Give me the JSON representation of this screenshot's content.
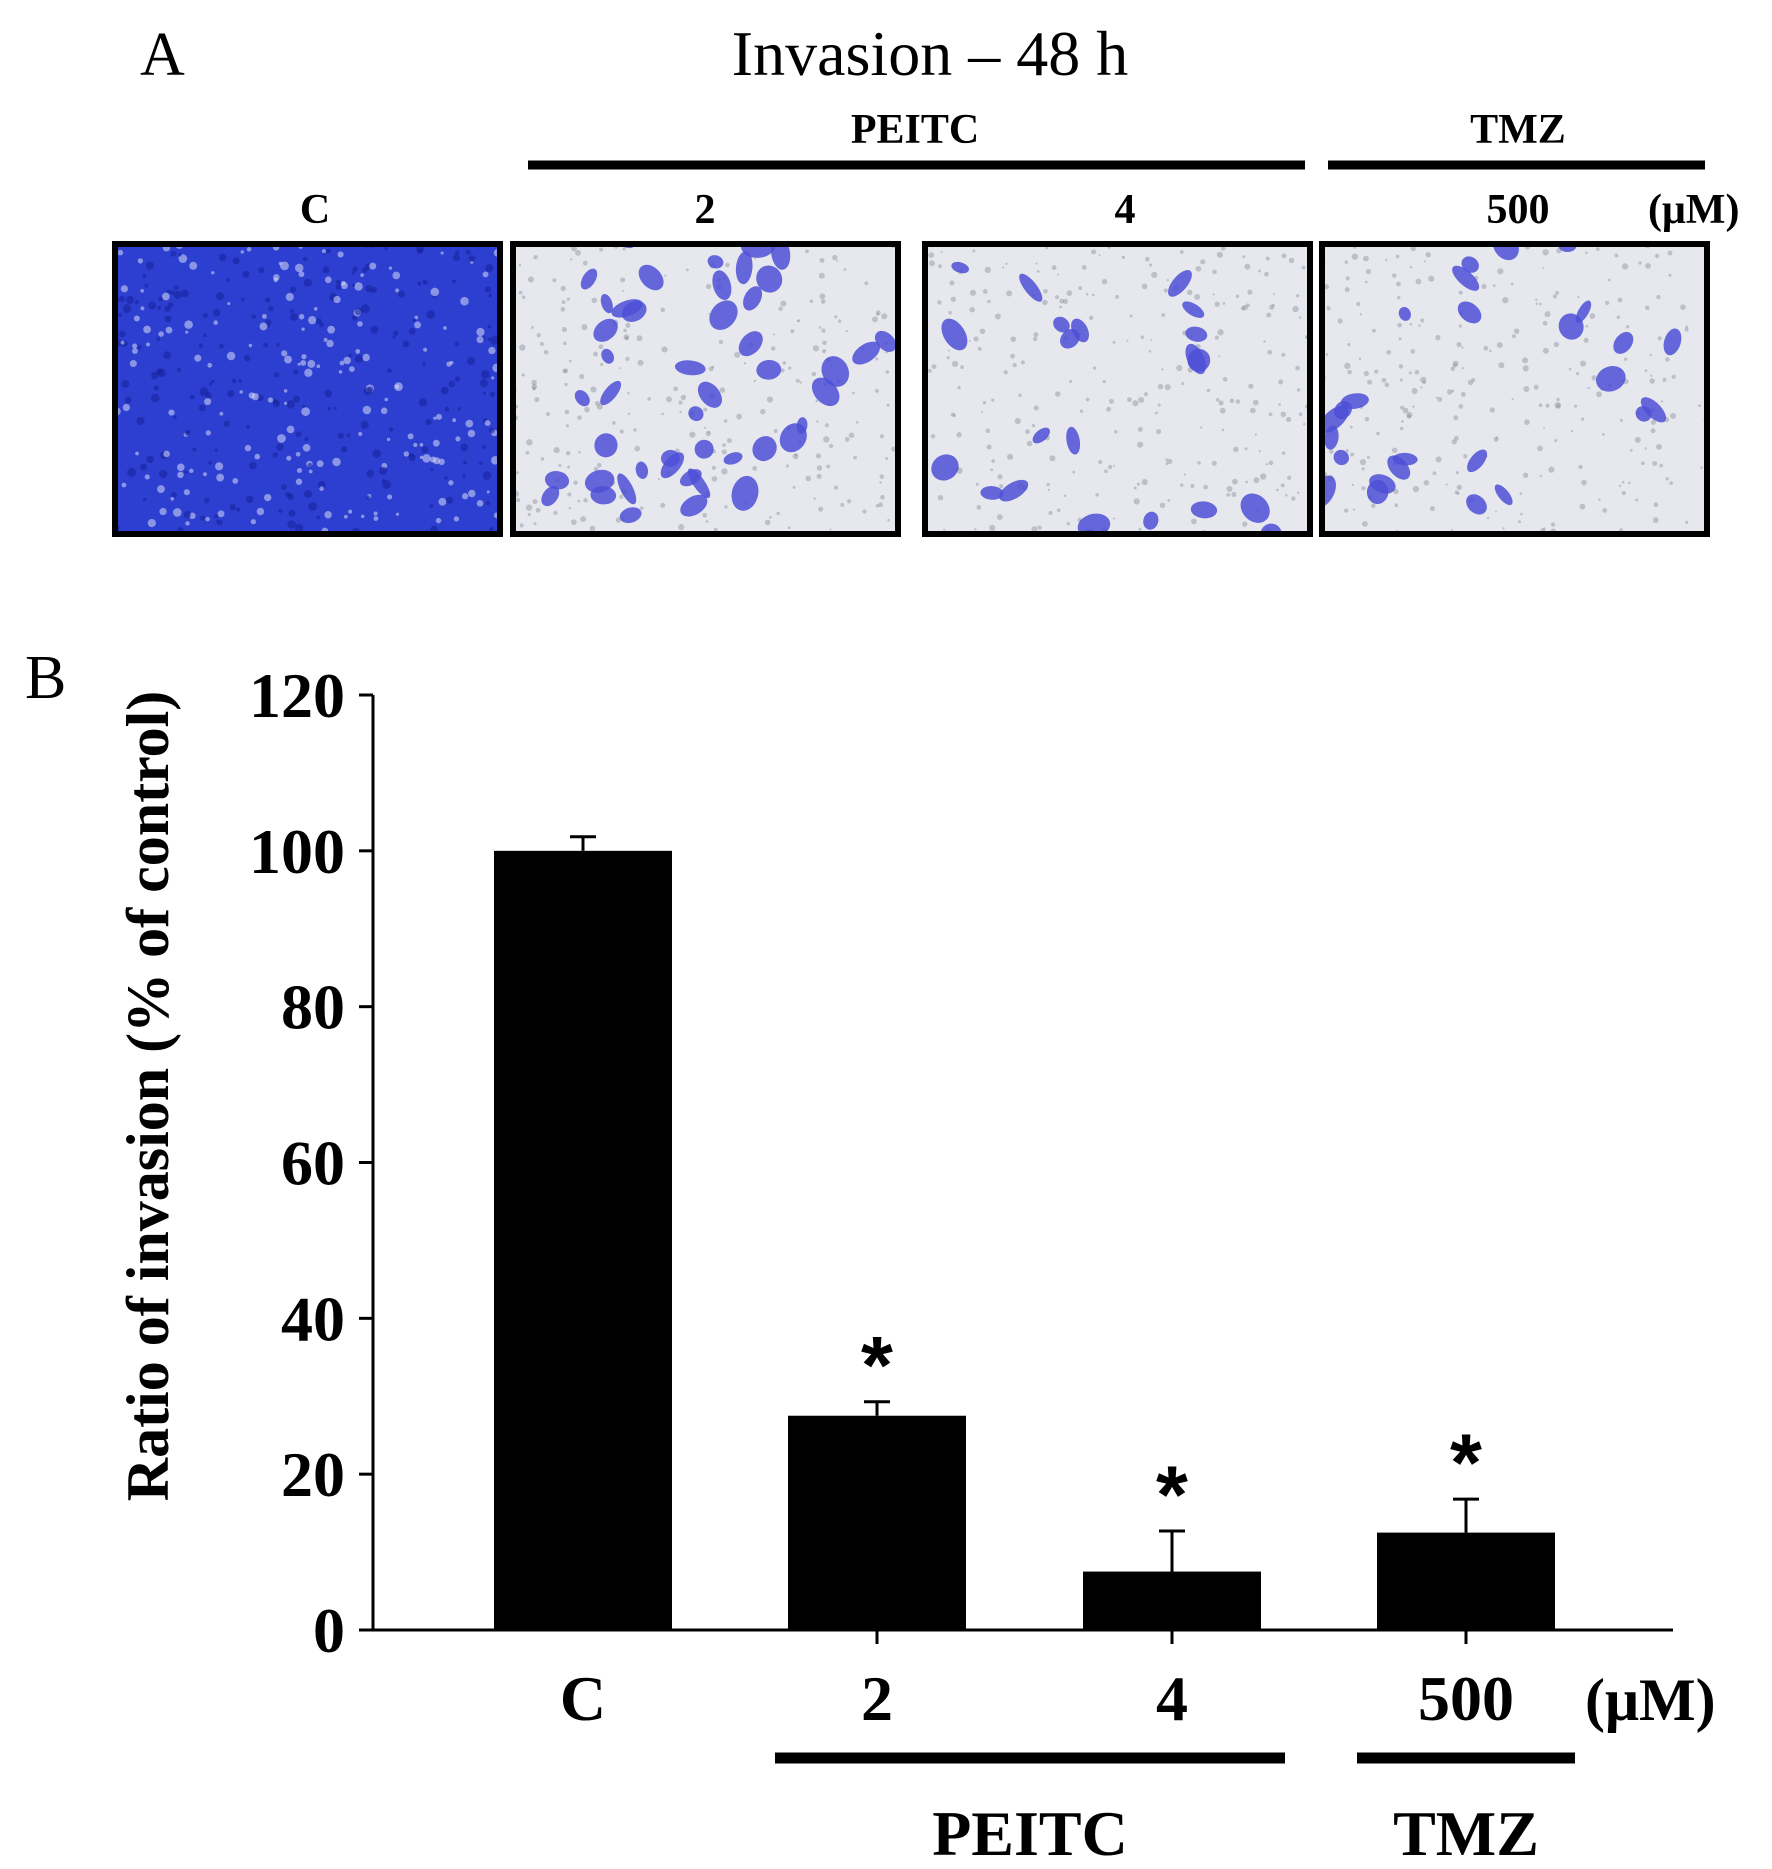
{
  "panel_a": {
    "letter": "A",
    "title": "Invasion – 48 h",
    "groups": [
      {
        "label": "PEITC"
      },
      {
        "label": "TMZ"
      }
    ],
    "conditions": [
      "C",
      "2",
      "4",
      "500"
    ],
    "unit": "(μM)",
    "photos": [
      {
        "condition": "C",
        "density": "very high"
      },
      {
        "condition": "2",
        "density": "moderate"
      },
      {
        "condition": "4",
        "density": "low"
      },
      {
        "condition": "500",
        "density": "low"
      }
    ],
    "stain_color": "#4c4fd6",
    "background_color": "#e6e8ee"
  },
  "chart_data": {
    "type": "bar",
    "panel_letter": "B",
    "categories": [
      "C",
      "2",
      "4",
      "500"
    ],
    "unit": "(μM)",
    "values": [
      100,
      27.5,
      7.5,
      12.5
    ],
    "errors": [
      1.8,
      1.8,
      5.2,
      4.3
    ],
    "significance": [
      "",
      "*",
      "*",
      "*"
    ],
    "ylabel": "Ratio of invasion (% of control)",
    "ylim": [
      0,
      120
    ],
    "yticks": [
      0,
      20,
      40,
      60,
      80,
      100,
      120
    ],
    "groups": [
      {
        "label": "PEITC",
        "categories": [
          "2",
          "4"
        ]
      },
      {
        "label": "TMZ",
        "categories": [
          "500"
        ]
      }
    ],
    "bar_color": "#000000",
    "grid": false,
    "legend": "none"
  }
}
